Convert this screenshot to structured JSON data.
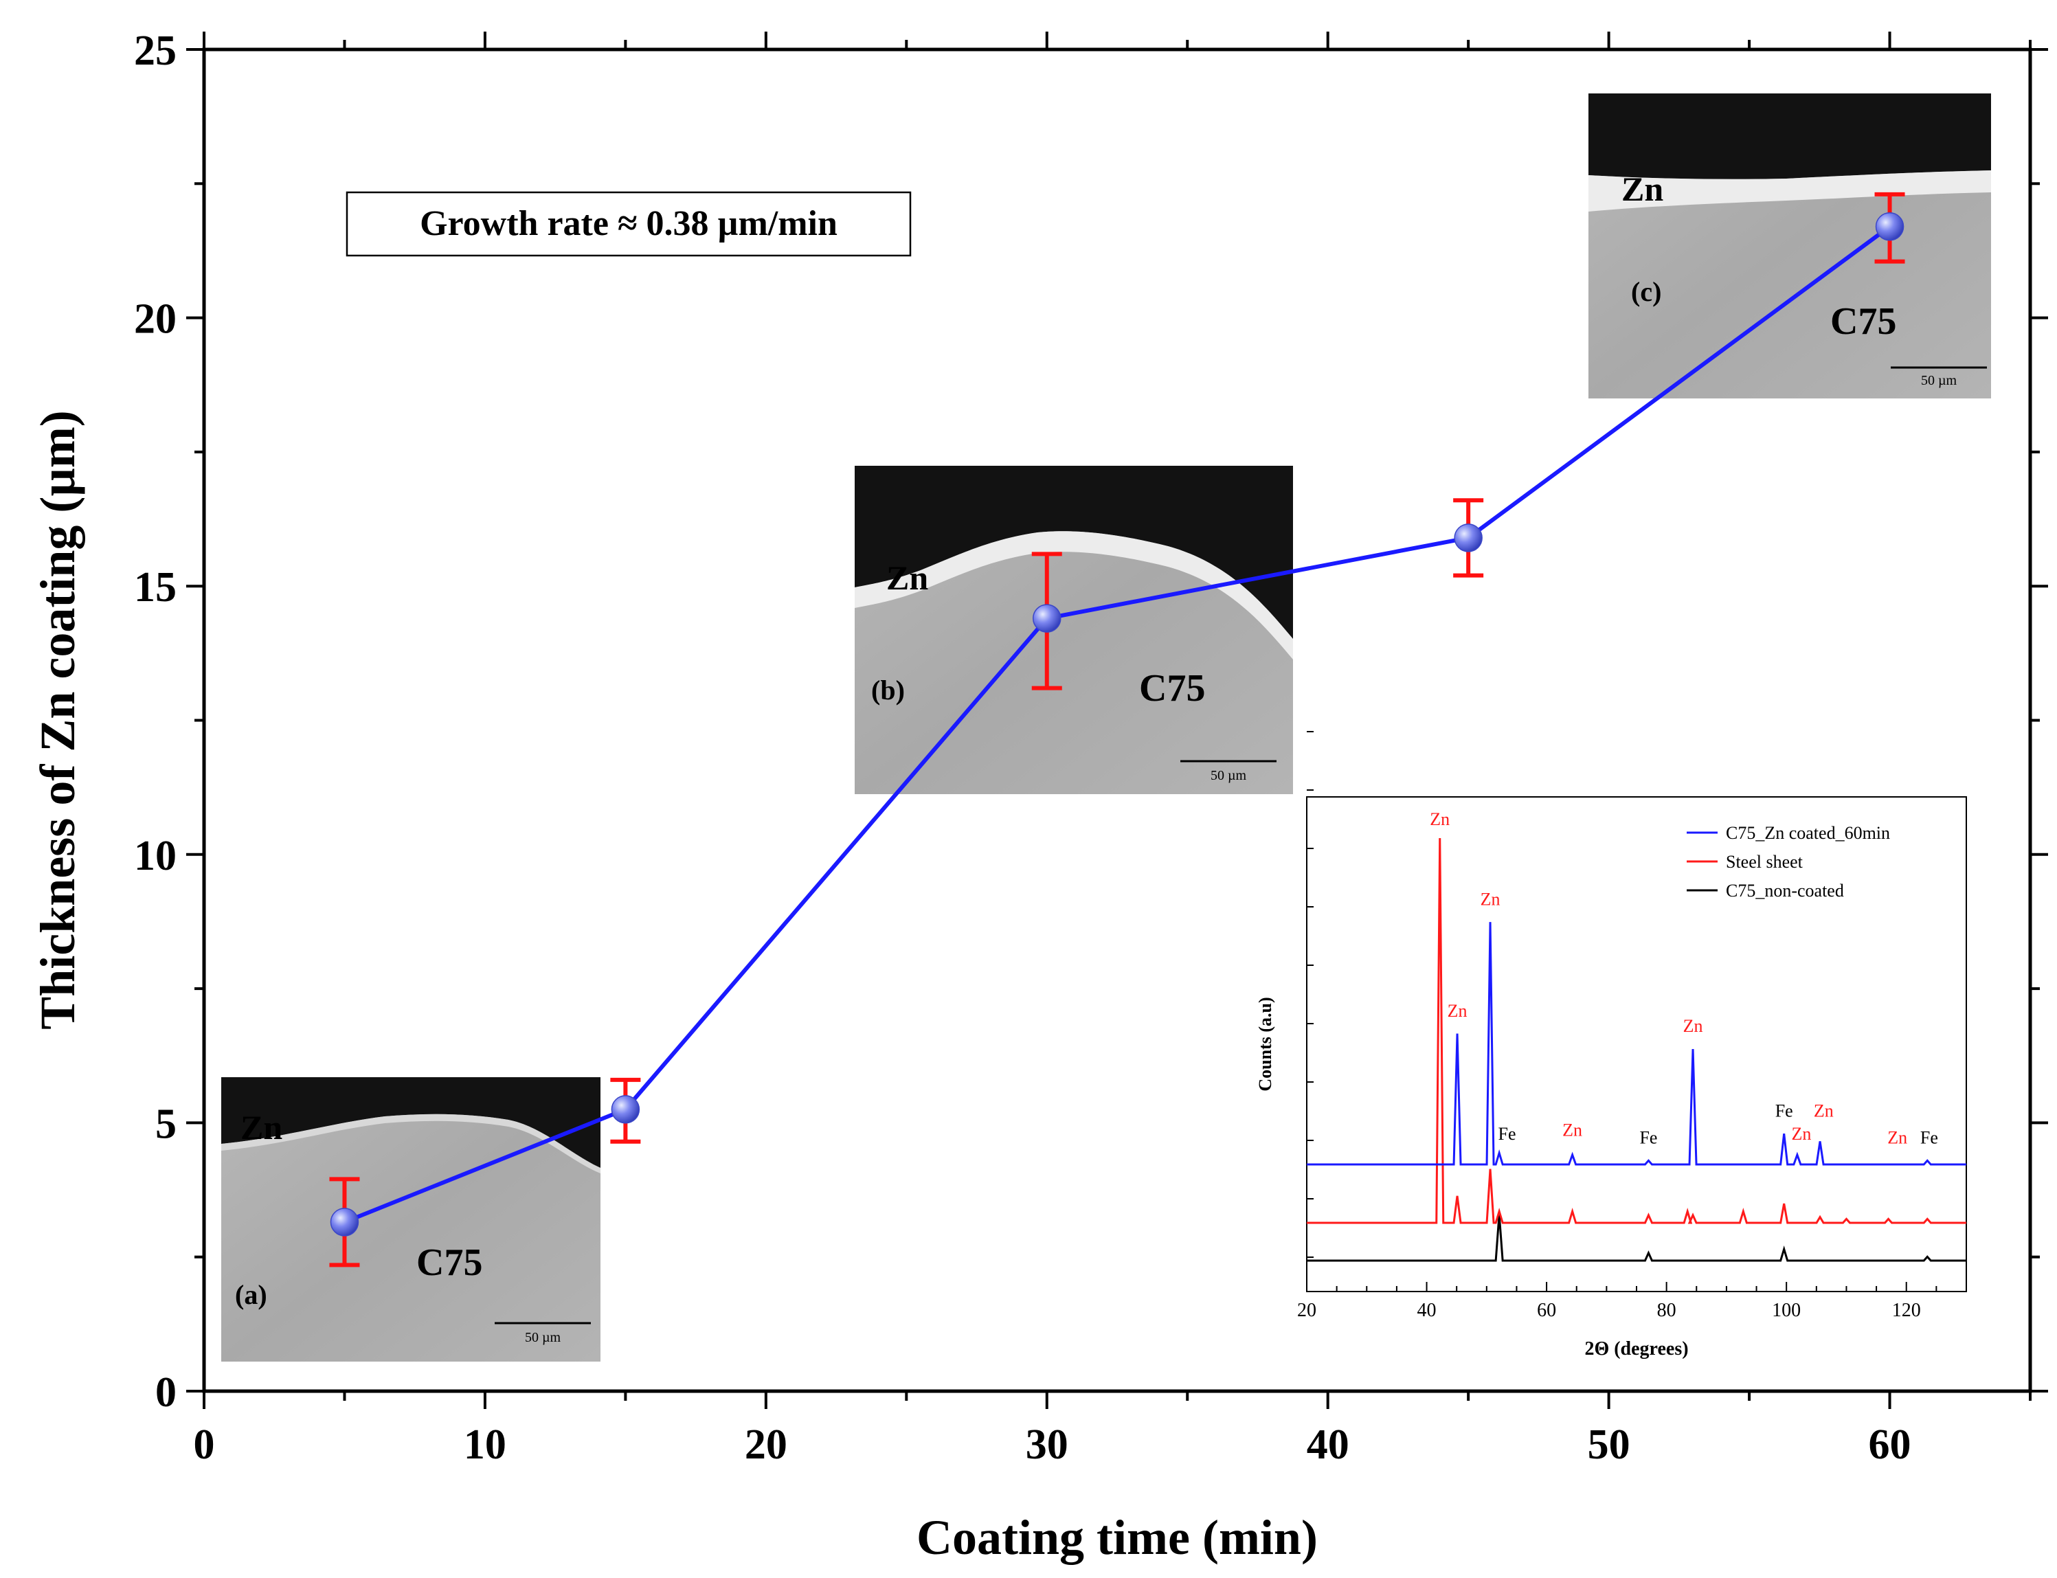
{
  "chart_data": {
    "type": "line",
    "title": "",
    "xlabel": "Coating time (min)",
    "ylabel": "Thickness of Zn coating (µm)",
    "xlim": [
      0,
      65
    ],
    "ylim": [
      0,
      25
    ],
    "x_ticks": [
      "0",
      "10",
      "20",
      "30",
      "40",
      "50",
      "60"
    ],
    "y_ticks": [
      "0",
      "5",
      "10",
      "15",
      "20",
      "25"
    ],
    "series": [
      {
        "name": "Zn coating thickness",
        "color": "#1a1aff",
        "x": [
          5,
          15,
          30,
          45,
          60
        ],
        "y": [
          3.15,
          5.25,
          14.4,
          15.9,
          21.7
        ],
        "err_low": [
          2.35,
          4.65,
          13.1,
          15.2,
          21.05
        ],
        "err_high": [
          3.95,
          5.8,
          15.6,
          16.6,
          22.3
        ]
      }
    ],
    "annotation": "Growth rate ≈ 0.38 µm/min",
    "micrographs": [
      {
        "label": "(a)",
        "coating": "Zn",
        "substrate": "C75",
        "scale": "50 µm"
      },
      {
        "label": "(b)",
        "coating": "Zn",
        "substrate": "C75",
        "scale": "50 µm"
      },
      {
        "label": "(c)",
        "coating": "Zn",
        "substrate": "C75",
        "scale": "50 µm"
      }
    ],
    "inset": {
      "type": "line",
      "xlabel": "2Θ (degrees)",
      "ylabel": "Counts (a.u)",
      "xlim": [
        20,
        130
      ],
      "x_ticks": [
        "20",
        "40",
        "60",
        "80",
        "100",
        "120"
      ],
      "legend": [
        {
          "name": "C75_Zn coated_60min",
          "color": "#1a1aff"
        },
        {
          "name": "Steel sheet",
          "color": "#ff1a1a"
        },
        {
          "name": "C75_non-coated",
          "color": "#000000"
        }
      ],
      "peaks_blue": [
        {
          "x": 45.1,
          "h": 0.34
        },
        {
          "x": 50.6,
          "h": 0.63
        },
        {
          "x": 52.1,
          "h": 0.03
        },
        {
          "x": 64.3,
          "h": 0.025
        },
        {
          "x": 77.0,
          "h": 0.01
        },
        {
          "x": 84.4,
          "h": 0.3
        },
        {
          "x": 99.6,
          "h": 0.08
        },
        {
          "x": 101.8,
          "h": 0.025
        },
        {
          "x": 105.6,
          "h": 0.06
        },
        {
          "x": 123.5,
          "h": 0.01
        }
      ],
      "peaks_red": [
        {
          "x": 42.2,
          "h": 1.0
        },
        {
          "x": 45.1,
          "h": 0.07
        },
        {
          "x": 50.6,
          "h": 0.14
        },
        {
          "x": 52.1,
          "h": 0.03
        },
        {
          "x": 64.3,
          "h": 0.03
        },
        {
          "x": 77.0,
          "h": 0.02
        },
        {
          "x": 83.5,
          "h": 0.03
        },
        {
          "x": 84.4,
          "h": 0.02
        },
        {
          "x": 92.8,
          "h": 0.03
        },
        {
          "x": 99.6,
          "h": 0.05
        },
        {
          "x": 105.6,
          "h": 0.015
        },
        {
          "x": 110.0,
          "h": 0.01
        },
        {
          "x": 117.0,
          "h": 0.01
        },
        {
          "x": 123.5,
          "h": 0.01
        }
      ],
      "peaks_black": [
        {
          "x": 52.1,
          "h": 0.12
        },
        {
          "x": 77.0,
          "h": 0.02
        },
        {
          "x": 99.6,
          "h": 0.03
        },
        {
          "x": 123.5,
          "h": 0.01
        }
      ],
      "peak_labels": [
        {
          "text": "Zn",
          "x": 42.2,
          "h": 1.02,
          "color": "#ff1a1a"
        },
        {
          "text": "Zn",
          "x": 50.6,
          "h": 0.66,
          "color": "#ff1a1a"
        },
        {
          "text": "Zn",
          "x": 45.1,
          "h": 0.37,
          "color": "#ff1a1a"
        },
        {
          "text": "Fe",
          "x": 53.4,
          "h": 0.05,
          "color": "#000000"
        },
        {
          "text": "Zn",
          "x": 64.3,
          "h": 0.06,
          "color": "#ff1a1a"
        },
        {
          "text": "Fe",
          "x": 77.0,
          "h": 0.04,
          "color": "#000000"
        },
        {
          "text": "Zn",
          "x": 84.4,
          "h": 0.33,
          "color": "#ff1a1a"
        },
        {
          "text": "Fe",
          "x": 99.6,
          "h": 0.11,
          "color": "#000000"
        },
        {
          "text": "Zn",
          "x": 102.5,
          "h": 0.05,
          "color": "#ff1a1a"
        },
        {
          "text": "Zn",
          "x": 106.2,
          "h": 0.11,
          "color": "#ff1a1a"
        },
        {
          "text": "Zn",
          "x": 118.5,
          "h": 0.04,
          "color": "#ff1a1a"
        },
        {
          "text": "Fe",
          "x": 123.8,
          "h": 0.04,
          "color": "#000000"
        }
      ]
    }
  }
}
